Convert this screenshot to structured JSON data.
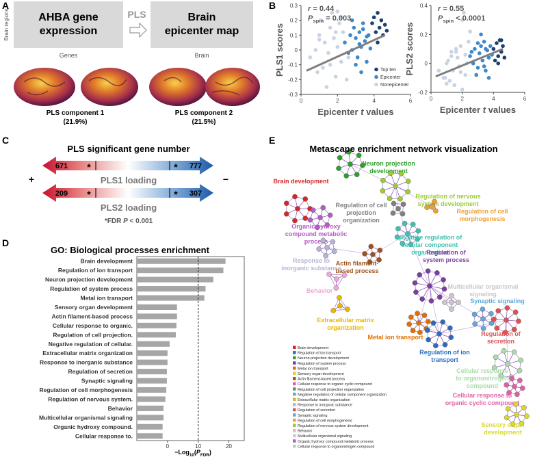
{
  "panel_labels": [
    "A",
    "B",
    "C",
    "D",
    "E"
  ],
  "panel_a": {
    "y_label": "Brain regions",
    "box1": [
      "AHBA gene",
      "expression"
    ],
    "box1_caption": "Genes",
    "arrow_label": "PLS",
    "box2": [
      "Brain",
      "epicenter map"
    ],
    "box2_caption": "Brain",
    "components": [
      {
        "name": "PLS component 1",
        "variance": "(21.9%)"
      },
      {
        "name": "PLS component 2",
        "variance": "(21.5%)"
      }
    ]
  },
  "chart_data": [
    {
      "type": "scatter",
      "ylabel": "PLS1 scores",
      "xlabel": {
        "pre": "Epicenter ",
        "italic": "t",
        "post": " values"
      },
      "stat_r": {
        "italic": "r",
        "rest": " = 0.44"
      },
      "stat_p": {
        "italic": "P",
        "sub": "spin",
        "rest": " = 0.003"
      },
      "xlim": [
        0,
        6
      ],
      "xticks": [
        0,
        2,
        4,
        6
      ],
      "ylim": [
        -0.3,
        0.3
      ],
      "yticks": [
        -0.3,
        -0.2,
        -0.1,
        0,
        0.1,
        0.2,
        0.3
      ],
      "legend": "lower right",
      "series": [
        {
          "name": "Top ten",
          "color": "#1c3f6e",
          "x": [
            3.9,
            4.0,
            4.1,
            4.2,
            4.3,
            4.4,
            4.5,
            4.6,
            4.2,
            4.7
          ],
          "values": [
            0.18,
            0.22,
            0.12,
            0.25,
            0.15,
            0.2,
            0.1,
            0.17,
            0.05,
            0.13
          ]
        },
        {
          "name": "Epicenter",
          "color": "#3f88c8",
          "x": [
            2.4,
            2.6,
            2.7,
            2.8,
            2.9,
            3.0,
            3.1,
            3.2,
            3.3,
            3.4,
            3.5,
            3.6,
            3.7,
            2.8,
            3.0,
            3.2,
            3.4,
            3.6,
            3.8,
            3.3
          ],
          "values": [
            0.05,
            -0.02,
            0.1,
            0.0,
            0.15,
            0.08,
            -0.05,
            0.12,
            0.02,
            0.18,
            0.06,
            -0.08,
            0.1,
            0.2,
            -0.1,
            0.04,
            0.14,
            0.09,
            0.01,
            -0.15
          ]
        },
        {
          "name": "Nonepicenter",
          "color": "#c9d3e3",
          "x": [
            0.5,
            0.8,
            1.0,
            1.2,
            1.3,
            1.5,
            1.6,
            1.8,
            1.9,
            2.0,
            2.1,
            2.2,
            2.3,
            2.5,
            1.1,
            1.4,
            1.7,
            2.0,
            2.4,
            0.9,
            1.6,
            2.2,
            1.0,
            1.9,
            2.6
          ],
          "values": [
            -0.05,
            0.0,
            0.1,
            -0.12,
            0.05,
            -0.02,
            0.15,
            0.08,
            -0.18,
            0.02,
            0.18,
            -0.08,
            0.12,
            -0.2,
            0.2,
            -0.25,
            0.25,
            0.26,
            0.05,
            -0.15,
            -0.1,
            0.22,
            0.07,
            0.12,
            -0.05
          ]
        }
      ],
      "fit": {
        "color": "#7f7f7f",
        "x": [
          0.3,
          4.6
        ],
        "values": [
          -0.14,
          0.1
        ]
      }
    },
    {
      "type": "scatter",
      "ylabel": "PLS2 scores",
      "xlabel": {
        "pre": "Epicenter ",
        "italic": "t",
        "post": " values"
      },
      "stat_r": {
        "italic": "r",
        "rest": " = 0.55"
      },
      "stat_p": {
        "italic": "P",
        "sub": "spin",
        "rest": " < 0.0001"
      },
      "xlim": [
        0,
        6
      ],
      "xticks": [
        0,
        2,
        4,
        6
      ],
      "ylim": [
        -0.2,
        0.4
      ],
      "yticks": [
        -0.2,
        0,
        0.2,
        0.4
      ],
      "series": [
        {
          "color": "#1c3f6e",
          "x": [
            4.0,
            4.2,
            4.3,
            4.4,
            4.5,
            4.6,
            4.1,
            4.3,
            4.7,
            4.5
          ],
          "values": [
            0.1,
            0.14,
            0.05,
            0.16,
            0.08,
            0.12,
            0.02,
            0.0,
            0.04,
            0.16
          ]
        },
        {
          "color": "#3f88c8",
          "x": [
            2.5,
            2.7,
            2.8,
            3.0,
            3.1,
            3.2,
            3.3,
            3.4,
            3.5,
            3.6,
            3.7,
            3.8,
            2.9,
            3.2,
            3.5,
            3.9,
            3.0,
            3.4,
            2.6,
            3.7
          ],
          "values": [
            0.05,
            0.0,
            0.1,
            -0.03,
            0.07,
            0.12,
            0.02,
            0.15,
            -0.05,
            0.09,
            0.04,
            0.12,
            -0.08,
            0.2,
            0.1,
            0.06,
            0.14,
            -0.02,
            0.08,
            -0.1
          ]
        },
        {
          "color": "#c9d3e3",
          "x": [
            0.5,
            0.8,
            1.0,
            1.2,
            1.3,
            1.5,
            1.6,
            1.8,
            1.9,
            2.0,
            2.1,
            2.2,
            2.3,
            2.4,
            1.1,
            1.4,
            1.7,
            2.0,
            0.9,
            1.6,
            2.2,
            1.0,
            1.9,
            2.5,
            1.3
          ],
          "values": [
            -0.05,
            -0.1,
            0.0,
            -0.12,
            0.05,
            -0.15,
            0.08,
            -0.02,
            0.12,
            0.3,
            0.35,
            -0.08,
            0.0,
            0.15,
            0.02,
            -0.05,
            0.04,
            -0.18,
            -0.1,
            0.1,
            0.06,
            -0.14,
            -0.06,
            0.22,
            0.08
          ]
        }
      ],
      "fit": {
        "color": "#7f7f7f",
        "x": [
          0.3,
          4.6
        ],
        "values": [
          -0.09,
          0.1
        ]
      }
    },
    {
      "type": "bar",
      "orientation": "horizontal",
      "title": "GO: Biological processes enrichment",
      "categories": [
        "Brain development",
        "Regulation of ion transport",
        "Neuron projection development",
        "Regulation of system process",
        "Metal ion transport",
        "Sensory organ development",
        "Actin filament-based process",
        "Cellular response to organic.",
        "Regulation of cell projection.",
        "Negative regulation of cellular.",
        "Extracellular matrix organization",
        "Response to inorganic substance",
        "Regulation of secretion",
        "Synaptic signaling",
        "Regulation of cell morphogenesis",
        "Regulation of nervous system.",
        "Behavior",
        "Multicellular organismal signaling",
        "Organic hydroxy compound.",
        "Cellular response to."
      ],
      "values": [
        18.9,
        18.2,
        14.9,
        12.4,
        12.0,
        3.1,
        3.1,
        2.9,
        2.7,
        0.7,
        0,
        0,
        -0.2,
        -0.2,
        -0.4,
        -0.7,
        -1.3,
        -1.3,
        -1.6,
        -1.6
      ],
      "color": "#a6a6a6",
      "xlim": [
        -10,
        25
      ],
      "xticks": [
        0,
        10,
        20
      ],
      "threshold": 10,
      "xlabel": {
        "pre": "−Log",
        "sub": "10",
        "open": "(",
        "italic": "P",
        "sub2": "FDR",
        "close": ")"
      }
    }
  ],
  "panel_c": {
    "title": "PLS significant gene number",
    "plus": "+",
    "minus": "−",
    "star": "*",
    "rows": [
      {
        "left": "671",
        "right": "777",
        "label": "PLS1 loading"
      },
      {
        "left": "209",
        "right": "307",
        "label": "PLS2 loading"
      }
    ],
    "note": {
      "pre": "FDR ",
      "italic": "P",
      "post": " < 0.001"
    }
  },
  "network": {
    "title": "Metascape enrichment network visualization",
    "clusters": [
      {
        "lines": [
          "Brain development"
        ],
        "color": "#d62728"
      },
      {
        "lines": [
          "Neuron projection",
          "development"
        ],
        "color": "#2ca02c"
      },
      {
        "lines": [
          "Regulation of nervous",
          "system development"
        ],
        "color": "#9acd32"
      },
      {
        "lines": [
          "Regulation of cell",
          "morphogenesis"
        ],
        "color": "#f0a030"
      },
      {
        "lines": [
          "Regulation of cell",
          "projection",
          "organization"
        ],
        "color": "#808080"
      },
      {
        "lines": [
          "Organic hydroxy",
          "compound metabolic",
          "process"
        ],
        "color": "#b45cc4"
      },
      {
        "lines": [
          "Negative regulation of",
          "cellular component",
          "organization"
        ],
        "color": "#40c0b0"
      },
      {
        "lines": [
          "Actin filament-",
          "based process"
        ],
        "color": "#a0521d"
      },
      {
        "lines": [
          "Response to",
          "inorganic substance"
        ],
        "color": "#b4b4d8"
      },
      {
        "lines": [
          "Regulation of",
          "system process"
        ],
        "color": "#7b3fa0"
      },
      {
        "lines": [
          "Behavior"
        ],
        "color": "#f0a8d8"
      },
      {
        "lines": [
          "Multicellular organismal",
          "signaling"
        ],
        "color": "#c8c8c8"
      },
      {
        "lines": [
          "Synaptic signaling"
        ],
        "color": "#60a8d8"
      },
      {
        "lines": [
          "Extracellular matrix",
          "organization"
        ],
        "color": "#e8b800"
      },
      {
        "lines": [
          "Metal ion transport"
        ],
        "color": "#e07000"
      },
      {
        "lines": [
          "Regulation of",
          "secretion"
        ],
        "color": "#e05050"
      },
      {
        "lines": [
          "Regulation of ion",
          "transport"
        ],
        "color": "#2a6cc0"
      },
      {
        "lines": [
          "Cellular response",
          "to organonitrogen",
          "compound"
        ],
        "color": "#a8dca8"
      },
      {
        "lines": [
          "Cellular response to",
          "organic cyclic compound"
        ],
        "color": "#e060a8"
      },
      {
        "lines": [
          "Sensory organ",
          "development"
        ],
        "color": "#d8d830"
      }
    ],
    "legend": [
      {
        "label": "Brain development",
        "color": "#d62728"
      },
      {
        "label": "Regulation of ion transport",
        "color": "#2a6cc0"
      },
      {
        "label": "Neuron projection development",
        "color": "#2ca02c"
      },
      {
        "label": "Regulation of system process",
        "color": "#7b3fa0"
      },
      {
        "label": "Metal ion transport",
        "color": "#e07000"
      },
      {
        "label": "Sensory organ development",
        "color": "#d8d830"
      },
      {
        "label": "Actin filament-based process",
        "color": "#a0521d"
      },
      {
        "label": "Cellular response to organic cyclic compound",
        "color": "#e060a8"
      },
      {
        "label": "Regulation of cell projection organization",
        "color": "#808080"
      },
      {
        "label": "Negative regulation of cellular component organization",
        "color": "#40c0b0"
      },
      {
        "label": "Extracellular matrix organization",
        "color": "#e8b800"
      },
      {
        "label": "Response to inorganic substance",
        "color": "#b4b4d8"
      },
      {
        "label": "Regulation of secretion",
        "color": "#e05050"
      },
      {
        "label": "Synaptic signaling",
        "color": "#60a8d8"
      },
      {
        "label": "Regulation of cell morphogenesis",
        "color": "#f0a030"
      },
      {
        "label": "Regulation of nervous system development",
        "color": "#9acd32"
      },
      {
        "label": "Behavior",
        "color": "#f0a8d8"
      },
      {
        "label": "Multicellular organismal signaling",
        "color": "#c8c8c8"
      },
      {
        "label": "Organic hydroxy compound metabolic process",
        "color": "#b45cc4"
      },
      {
        "label": "Cellular response to organonitrogen compound",
        "color": "#a8dca8"
      }
    ]
  }
}
